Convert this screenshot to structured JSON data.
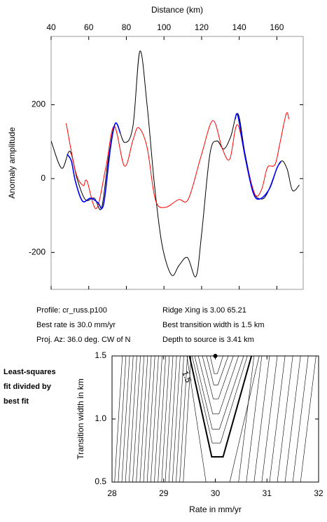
{
  "chart_data": [
    {
      "type": "line",
      "xlabel": "Distance (km)",
      "ylabel": "Anomaly amplitude",
      "xlim": [
        40,
        174
      ],
      "xticks": [
        40,
        60,
        80,
        100,
        120,
        140,
        160
      ],
      "ylim": [
        -300,
        385
      ],
      "yticks": [
        -200,
        0,
        200
      ],
      "series": [
        {
          "color": "#000000",
          "x": [
            40,
            45.6,
            50,
            53.8,
            58.2,
            63,
            66.8,
            70.5,
            74.2,
            79,
            83.5,
            87.2,
            91,
            95,
            99,
            104,
            108,
            112.5,
            117,
            120,
            124.4,
            128.1,
            131.8,
            135.5,
            139.3,
            143,
            147.4,
            151.2,
            154.9,
            161.6,
            165.3,
            168.3,
            172
          ],
          "values": [
            102,
            28,
            74,
            0,
            -57,
            -53,
            -80,
            57,
            150,
            98,
            142,
            345,
            200,
            -20,
            -180,
            -261,
            -235,
            -214,
            -265,
            -150,
            66,
            102,
            80,
            114,
            176,
            70,
            -32,
            -55,
            -40,
            44,
            28,
            -32,
            -17
          ]
        },
        {
          "color": "#ff0000",
          "x": [
            48,
            53,
            57,
            59,
            64,
            69,
            73.5,
            79,
            83.5,
            86.5,
            91,
            95.4,
            100.6,
            107.7,
            113,
            120,
            126,
            131,
            135,
            139,
            144,
            148.5,
            152,
            155,
            159,
            161.6,
            165,
            166.4
          ],
          "values": [
            150,
            19,
            -19,
            -6,
            -81,
            28,
            142,
            34,
            104,
            138,
            85,
            -57,
            -78,
            -57,
            -55,
            66,
            157,
            81,
            53,
            146,
            38,
            -44,
            -28,
            30,
            38,
            95,
            176,
            161
          ]
        },
        {
          "color": "#0000ff",
          "x": [
            48.5,
            50.8,
            53,
            56.7,
            61,
            65,
            67,
            68.6,
            71.6,
            74.2,
            76.8,
            null,
            137.8,
            139.3,
            143,
            147.4,
            151,
            156,
            160,
            162.3
          ],
          "values": [
            66,
            47,
            -9,
            -61,
            -53,
            -66,
            -81,
            -47,
            85,
            150,
            123,
            null,
            161,
            170,
            62,
            -38,
            -55,
            -28,
            28,
            47
          ]
        }
      ]
    },
    {
      "type": "contour",
      "xlabel": "Rate in mm/yr",
      "ylabel": "Transition width in km",
      "xlim": [
        28,
        32
      ],
      "xticks": [
        28,
        29,
        30,
        31,
        32
      ],
      "ylim": [
        0.5,
        1.5
      ],
      "yticks": [
        0.5,
        {
          "value": 1,
          "label": "1.0"
        },
        1.5
      ],
      "color": "#000000",
      "contour_label": "1.5",
      "best_fit": {
        "x": 30,
        "y": 1.5
      },
      "contours": [
        {
          "x": [
            28.05,
            28.2
          ],
          "y": [
            0.5,
            1.5
          ]
        },
        {
          "x": [
            28.12,
            28.27
          ],
          "y": [
            0.5,
            1.5
          ]
        },
        {
          "x": [
            28.19,
            28.34
          ],
          "y": [
            0.5,
            1.5
          ]
        },
        {
          "x": [
            28.26,
            28.41
          ],
          "y": [
            0.5,
            1.5
          ]
        },
        {
          "x": [
            28.33,
            28.48
          ],
          "y": [
            0.5,
            1.5
          ]
        },
        {
          "x": [
            28.4,
            28.55
          ],
          "y": [
            0.5,
            1.5
          ]
        },
        {
          "x": [
            28.47,
            28.62
          ],
          "y": [
            0.5,
            1.5
          ]
        },
        {
          "x": [
            28.54,
            28.69
          ],
          "y": [
            0.5,
            1.5
          ]
        },
        {
          "x": [
            28.61,
            28.76
          ],
          "y": [
            0.5,
            1.5
          ]
        },
        {
          "x": [
            28.68,
            28.83
          ],
          "y": [
            0.5,
            1.5
          ]
        },
        {
          "x": [
            28.75,
            28.9
          ],
          "y": [
            0.5,
            1.5
          ]
        },
        {
          "x": [
            28.82,
            28.97
          ],
          "y": [
            0.5,
            1.5
          ]
        },
        {
          "x": [
            28.89,
            29.04
          ],
          "y": [
            0.5,
            1.5
          ]
        },
        {
          "x": [
            28.96,
            29.11
          ],
          "y": [
            0.5,
            1.5
          ]
        },
        {
          "x": [
            29.03,
            29.18
          ],
          "y": [
            0.5,
            1.5
          ]
        },
        {
          "x": [
            29.1,
            29.25
          ],
          "y": [
            0.5,
            1.5
          ]
        },
        {
          "x": [
            29.17,
            29.32
          ],
          "y": [
            0.5,
            1.5
          ]
        },
        {
          "x": [
            29.24,
            29.39
          ],
          "y": [
            0.5,
            1.5
          ]
        },
        {
          "x": [
            29.31,
            29.46
          ],
          "y": [
            0.5,
            1.5
          ]
        },
        {
          "x": [
            29.38,
            29.53
          ],
          "y": [
            0.5,
            1.5
          ]
        },
        {
          "x": [
            29.9,
            29.98,
            30.04,
            30.15
          ],
          "y": [
            1.5,
            1.36,
            1.36,
            1.5
          ]
        },
        {
          "x": [
            29.83,
            29.97,
            30.05,
            30.25
          ],
          "y": [
            1.5,
            1.27,
            1.27,
            1.5
          ]
        },
        {
          "x": [
            29.75,
            29.96,
            30.06,
            30.35
          ],
          "y": [
            1.5,
            1.16,
            1.16,
            1.5
          ]
        },
        {
          "x": [
            29.67,
            29.95,
            30.07,
            30.45
          ],
          "y": [
            1.5,
            1.04,
            1.04,
            1.5
          ]
        },
        {
          "x": [
            29.6,
            29.94,
            30.08,
            30.55
          ],
          "y": [
            1.5,
            0.92,
            0.92,
            1.5
          ]
        },
        {
          "x": [
            29.55,
            29.94,
            30.1,
            30.62
          ],
          "y": [
            1.5,
            0.81,
            0.81,
            1.5
          ]
        },
        {
          "x": [
            29.5,
            29.93,
            30.15,
            30.7
          ],
          "y": [
            1.5,
            0.7,
            0.7,
            1.5
          ],
          "line_width": 2
        },
        {
          "x": [
            29.45,
            29.82
          ],
          "y": [
            1.5,
            0.5
          ]
        },
        {
          "x": [
            30.28,
            30.85
          ],
          "y": [
            0.5,
            1.5
          ]
        },
        {
          "x": [
            30.45,
            30.75
          ],
          "y": [
            0.5,
            1.5
          ]
        },
        {
          "x": [
            30.6,
            30.9
          ],
          "y": [
            0.5,
            1.5
          ]
        },
        {
          "x": [
            30.75,
            31.05
          ],
          "y": [
            0.5,
            1.5
          ]
        },
        {
          "x": [
            30.9,
            31.2
          ],
          "y": [
            0.5,
            1.5
          ]
        },
        {
          "x": [
            31.05,
            31.35
          ],
          "y": [
            0.5,
            1.5
          ]
        },
        {
          "x": [
            31.2,
            31.5
          ],
          "y": [
            0.5,
            1.5
          ]
        },
        {
          "x": [
            31.35,
            31.65
          ],
          "y": [
            0.5,
            1.5
          ]
        },
        {
          "x": [
            31.5,
            31.8
          ],
          "y": [
            0.5,
            1.5
          ]
        },
        {
          "x": [
            31.65,
            31.95
          ],
          "y": [
            0.5,
            1.5
          ]
        }
      ]
    }
  ],
  "info": {
    "left": [
      "Profile: cr_russ.p100",
      "Best rate is 30.0 mm/yr",
      "Proj. Az: 36.0 deg. CW of N"
    ],
    "right": [
      "Ridge Xing is 3.00 65.21",
      "Best transition width is 1.5 km",
      "Depth to source is   3.41 km"
    ]
  },
  "side_note": [
    "Least-squares",
    "fit divided by",
    "best fit"
  ]
}
